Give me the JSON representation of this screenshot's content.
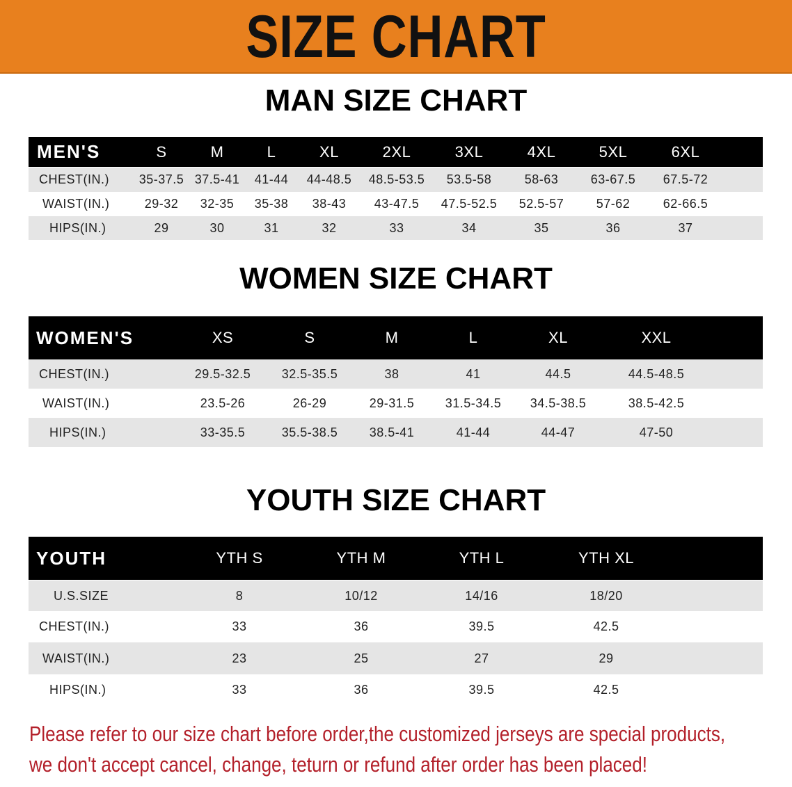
{
  "banner_title": "SIZE CHART",
  "colors": {
    "banner": "#e8801e",
    "header_row": "#000000",
    "stripe": "#e5e5e5",
    "note": "#b3202a"
  },
  "men": {
    "title": "MAN SIZE CHART",
    "header": [
      "MEN'S",
      "S",
      "M",
      "L",
      "XL",
      "2XL",
      "3XL",
      "4XL",
      "5XL",
      "6XL"
    ],
    "rows": [
      [
        "CHEST(IN.)",
        "35-37.5",
        "37.5-41",
        "41-44",
        "44-48.5",
        "48.5-53.5",
        "53.5-58",
        "58-63",
        "63-67.5",
        "67.5-72"
      ],
      [
        "WAIST(IN.)",
        "29-32",
        "32-35",
        "35-38",
        "38-43",
        "43-47.5",
        "47.5-52.5",
        "52.5-57",
        "57-62",
        "62-66.5"
      ],
      [
        "HIPS(IN.)",
        "29",
        "30",
        "31",
        "32",
        "33",
        "34",
        "35",
        "36",
        "37"
      ]
    ]
  },
  "women": {
    "title": "WOMEN SIZE CHART",
    "header": [
      "WOMEN'S",
      "XS",
      "S",
      "M",
      "L",
      "XL",
      "XXL"
    ],
    "rows": [
      [
        "CHEST(IN.)",
        "29.5-32.5",
        "32.5-35.5",
        "38",
        "41",
        "44.5",
        "44.5-48.5"
      ],
      [
        "WAIST(IN.)",
        "23.5-26",
        "26-29",
        "29-31.5",
        "31.5-34.5",
        "34.5-38.5",
        "38.5-42.5"
      ],
      [
        "HIPS(IN.)",
        "33-35.5",
        "35.5-38.5",
        "38.5-41",
        "41-44",
        "44-47",
        "47-50"
      ]
    ]
  },
  "youth": {
    "title": "YOUTH SIZE CHART",
    "header": [
      "YOUTH",
      "YTH S",
      "YTH M",
      "YTH L",
      "YTH XL"
    ],
    "rows": [
      [
        "U.S.SIZE",
        "8",
        "10/12",
        "14/16",
        "18/20"
      ],
      [
        "CHEST(IN.)",
        "33",
        "36",
        "39.5",
        "42.5"
      ],
      [
        "WAIST(IN.)",
        "23",
        "25",
        "27",
        "29"
      ],
      [
        "HIPS(IN.)",
        "33",
        "36",
        "39.5",
        "42.5"
      ]
    ]
  },
  "note": {
    "line1": "Please refer to our size chart before order,the customized jerseys are special products,",
    "line2": "we don't accept cancel, change, teturn or refund after order has been placed!"
  }
}
